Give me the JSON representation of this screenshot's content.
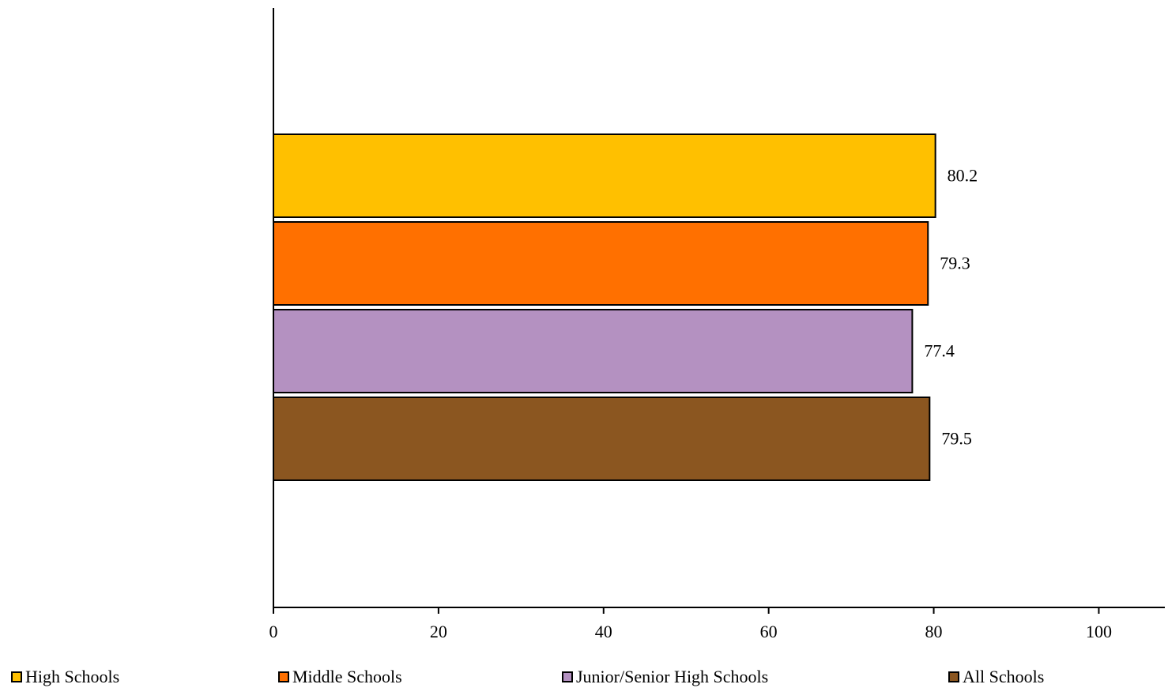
{
  "chart_data": {
    "type": "bar",
    "orientation": "horizontal",
    "title": "",
    "xlabel": "",
    "ylabel": "",
    "xlim": [
      0,
      108
    ],
    "xticks": [
      0,
      20,
      40,
      60,
      80,
      100
    ],
    "grid": false,
    "legend_position": "bottom",
    "series": [
      {
        "name": "High Schools",
        "value": 80.2,
        "label": "80.2",
        "color": "#FFC000"
      },
      {
        "name": "Middle Schools",
        "value": 79.3,
        "label": "79.3",
        "color": "#FF7000"
      },
      {
        "name": "Junior/Senior High Schools",
        "value": 77.4,
        "label": "77.4",
        "color": "#B491C1"
      },
      {
        "name": "All Schools",
        "value": 79.5,
        "label": "79.5",
        "color": "#8B5620"
      }
    ]
  }
}
